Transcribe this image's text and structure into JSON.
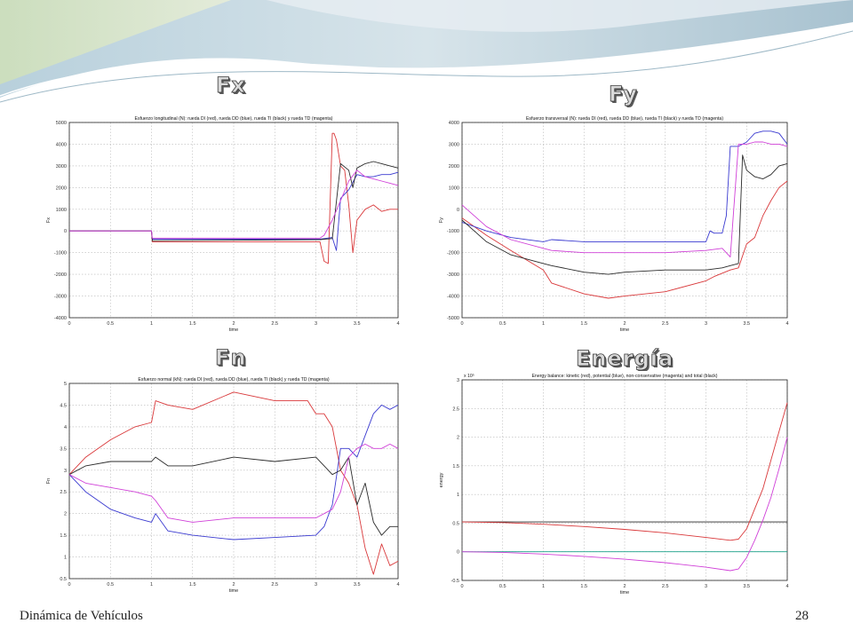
{
  "headings": {
    "fx": "Fx",
    "fy": "Fy",
    "fn": "Fn",
    "energy": "Energía"
  },
  "footer": {
    "title": "Dinámica de Vehículos",
    "page": "28"
  },
  "colors": {
    "red": "#d9383a",
    "blue": "#3a3ad0",
    "black": "#2a2a2a",
    "magenta": "#d040d8",
    "green": "#18a088"
  },
  "chart_data": [
    {
      "id": "fx",
      "type": "line",
      "title": "Esfuerzo longitudinal (N): rueda DI (red), rueda DD (blue), rueda TI (black) y rueda TD (magenta)",
      "xlabel": "time",
      "ylabel": "Fx",
      "xlim": [
        0,
        4
      ],
      "ylim": [
        -4000,
        5000
      ],
      "xticks": [
        0,
        0.5,
        1,
        1.5,
        2,
        2.5,
        3,
        3.5,
        4
      ],
      "xticklabels": [
        "0",
        "0.5",
        "1",
        "1.5",
        "2",
        "2.5",
        "3",
        "3.5",
        "4"
      ],
      "yticks": [
        -4000,
        -3000,
        -2000,
        -1000,
        0,
        1000,
        2000,
        3000,
        4000,
        5000
      ],
      "yticklabels": [
        "-4000",
        "-3000",
        "-2000",
        "-1000",
        "0",
        "1000",
        "2000",
        "3000",
        "4000",
        "5000"
      ],
      "grid": true,
      "series": [
        {
          "color": "red",
          "x": [
            0,
            1,
            1.01,
            3.05,
            3.1,
            3.15,
            3.2,
            3.22,
            3.25,
            3.3,
            3.35,
            3.4,
            3.45,
            3.5,
            3.6,
            3.7,
            3.8,
            3.9,
            4
          ],
          "y": [
            0,
            0,
            -500,
            -500,
            -1400,
            -1500,
            4500,
            4500,
            4200,
            3000,
            2800,
            1200,
            -1000,
            500,
            1000,
            1200,
            900,
            1000,
            1000
          ]
        },
        {
          "color": "blue",
          "x": [
            0,
            1,
            1.01,
            3.05,
            3.1,
            3.2,
            3.25,
            3.3,
            3.4,
            3.5,
            3.6,
            3.7,
            3.8,
            3.9,
            4
          ],
          "y": [
            0,
            0,
            -380,
            -380,
            -350,
            -300,
            -900,
            1500,
            1900,
            2600,
            2500,
            2500,
            2600,
            2600,
            2700
          ]
        },
        {
          "color": "black",
          "x": [
            0,
            1,
            1.01,
            3.05,
            3.1,
            3.2,
            3.3,
            3.4,
            3.45,
            3.5,
            3.6,
            3.7,
            3.8,
            3.9,
            4
          ],
          "y": [
            0,
            0,
            -450,
            -400,
            -380,
            -350,
            3100,
            2800,
            2000,
            2900,
            3100,
            3200,
            3100,
            3000,
            2900
          ]
        },
        {
          "color": "magenta",
          "x": [
            0,
            1,
            1.01,
            3.05,
            3.1,
            3.2,
            3.3,
            3.4,
            3.5,
            3.6,
            3.7,
            3.8,
            3.9,
            4
          ],
          "y": [
            0,
            0,
            -330,
            -330,
            -200,
            500,
            1400,
            2300,
            2800,
            2500,
            2400,
            2300,
            2200,
            2100
          ]
        }
      ]
    },
    {
      "id": "fy",
      "type": "line",
      "title": "Esfuerzo transversal (N): rueda DI (red), rueda DD (blue), rueda TI (black) y rueda TD (magenta)",
      "xlabel": "time",
      "ylabel": "Fy",
      "xlim": [
        0,
        4
      ],
      "ylim": [
        -5000,
        4000
      ],
      "xticks": [
        0,
        0.5,
        1,
        1.5,
        2,
        2.5,
        3,
        3.5,
        4
      ],
      "xticklabels": [
        "0",
        "0.5",
        "1",
        "1.5",
        "2",
        "2.5",
        "3",
        "3.5",
        "4"
      ],
      "yticks": [
        -5000,
        -4000,
        -3000,
        -2000,
        -1000,
        0,
        1000,
        2000,
        3000,
        4000
      ],
      "yticklabels": [
        "-5000",
        "-4000",
        "-3000",
        "-2000",
        "-1000",
        "0",
        "1000",
        "2000",
        "3000",
        "4000"
      ],
      "grid": true,
      "series": [
        {
          "color": "red",
          "x": [
            0,
            0.3,
            0.6,
            1,
            1.1,
            1.5,
            1.8,
            2,
            2.5,
            3,
            3.1,
            3.3,
            3.4,
            3.5,
            3.6,
            3.7,
            3.8,
            3.9,
            4
          ],
          "y": [
            -400,
            -1200,
            -1900,
            -2800,
            -3400,
            -3900,
            -4100,
            -4000,
            -3800,
            -3300,
            -3100,
            -2800,
            -2700,
            -1600,
            -1300,
            -300,
            400,
            1000,
            1300
          ]
        },
        {
          "color": "blue",
          "x": [
            0,
            0.3,
            0.6,
            1,
            1.1,
            1.5,
            2,
            2.5,
            3,
            3.05,
            3.1,
            3.2,
            3.25,
            3.3,
            3.4,
            3.5,
            3.6,
            3.7,
            3.8,
            3.9,
            4
          ],
          "y": [
            -600,
            -1000,
            -1300,
            -1500,
            -1400,
            -1500,
            -1500,
            -1500,
            -1500,
            -1000,
            -1100,
            -1100,
            -300,
            2900,
            2900,
            3100,
            3500,
            3600,
            3600,
            3500,
            3000
          ]
        },
        {
          "color": "black",
          "x": [
            0,
            0.3,
            0.6,
            1,
            1.1,
            1.5,
            1.8,
            2,
            2.5,
            3,
            3.2,
            3.3,
            3.4,
            3.45,
            3.5,
            3.6,
            3.7,
            3.8,
            3.9,
            4
          ],
          "y": [
            -500,
            -1500,
            -2100,
            -2500,
            -2600,
            -2900,
            -3000,
            -2900,
            -2800,
            -2800,
            -2700,
            -2600,
            -2500,
            2500,
            1800,
            1500,
            1400,
            1600,
            2000,
            2100
          ]
        },
        {
          "color": "magenta",
          "x": [
            0,
            0.3,
            0.6,
            1,
            1.1,
            1.5,
            2,
            2.5,
            3,
            3.2,
            3.3,
            3.4,
            3.5,
            3.6,
            3.7,
            3.8,
            3.9,
            4
          ],
          "y": [
            200,
            -800,
            -1400,
            -1800,
            -1900,
            -2000,
            -2000,
            -2000,
            -1900,
            -1800,
            -2200,
            3000,
            3000,
            3100,
            3100,
            3000,
            3000,
            2900
          ]
        }
      ]
    },
    {
      "id": "fn",
      "type": "line",
      "title": "Esfuerzo normal (kN): rueda DI (red), rueda DD (blue), rueda TI (black) y rueda TD (magenta)",
      "xlabel": "time",
      "ylabel": "Fn",
      "xlim": [
        0,
        4
      ],
      "ylim": [
        0.5,
        5
      ],
      "xticks": [
        0,
        0.5,
        1,
        1.5,
        2,
        2.5,
        3,
        3.5,
        4
      ],
      "xticklabels": [
        "0",
        "0.5",
        "1",
        "1.5",
        "2",
        "2.5",
        "3",
        "3.5",
        "4"
      ],
      "yticks": [
        0.5,
        1,
        1.5,
        2,
        2.5,
        3,
        3.5,
        4,
        4.5,
        5
      ],
      "yticklabels": [
        "0.5",
        "1",
        "1.5",
        "2",
        "2.5",
        "3",
        "3.5",
        "4",
        "4.5",
        "5"
      ],
      "grid": true,
      "series": [
        {
          "color": "red",
          "x": [
            0,
            0.2,
            0.5,
            0.8,
            1,
            1.05,
            1.2,
            1.5,
            2,
            2.5,
            2.9,
            3.0,
            3.1,
            3.2,
            3.3,
            3.4,
            3.5,
            3.6,
            3.7,
            3.8,
            3.9,
            4
          ],
          "y": [
            2.9,
            3.3,
            3.7,
            4.0,
            4.1,
            4.6,
            4.5,
            4.4,
            4.8,
            4.6,
            4.6,
            4.3,
            4.3,
            4.0,
            3.0,
            2.7,
            2.2,
            1.2,
            0.6,
            1.3,
            0.8,
            0.9
          ]
        },
        {
          "color": "blue",
          "x": [
            0,
            0.2,
            0.5,
            0.8,
            1,
            1.05,
            1.2,
            1.5,
            2,
            2.5,
            3.0,
            3.1,
            3.2,
            3.3,
            3.4,
            3.5,
            3.6,
            3.7,
            3.8,
            3.9,
            4
          ],
          "y": [
            2.9,
            2.5,
            2.1,
            1.9,
            1.8,
            2.0,
            1.6,
            1.5,
            1.4,
            1.45,
            1.5,
            1.7,
            2.2,
            3.5,
            3.5,
            3.3,
            3.8,
            4.3,
            4.5,
            4.4,
            4.5
          ]
        },
        {
          "color": "black",
          "x": [
            0,
            0.2,
            0.5,
            0.8,
            1,
            1.05,
            1.2,
            1.5,
            2,
            2.5,
            3.0,
            3.2,
            3.3,
            3.4,
            3.5,
            3.6,
            3.7,
            3.8,
            3.9,
            4
          ],
          "y": [
            2.9,
            3.1,
            3.2,
            3.2,
            3.2,
            3.3,
            3.1,
            3.1,
            3.3,
            3.2,
            3.3,
            2.9,
            3.0,
            3.3,
            2.2,
            2.7,
            1.8,
            1.5,
            1.7,
            1.7
          ]
        },
        {
          "color": "magenta",
          "x": [
            0,
            0.2,
            0.5,
            0.8,
            1,
            1.05,
            1.2,
            1.5,
            2,
            2.5,
            3.0,
            3.2,
            3.3,
            3.4,
            3.5,
            3.6,
            3.7,
            3.8,
            3.9,
            4
          ],
          "y": [
            2.9,
            2.7,
            2.6,
            2.5,
            2.4,
            2.3,
            1.9,
            1.8,
            1.9,
            1.9,
            1.9,
            2.1,
            2.5,
            3.3,
            3.5,
            3.6,
            3.5,
            3.5,
            3.6,
            3.5
          ]
        }
      ]
    },
    {
      "id": "energy",
      "type": "line",
      "title": "Energy balance: kinetic (red), potential (blue), non-conservative (magenta) and total (black)",
      "xlabel": "time",
      "ylabel": "energy",
      "multiplier": "x 10⁵",
      "xlim": [
        0,
        4
      ],
      "ylim": [
        -0.5,
        3
      ],
      "xticks": [
        0,
        0.5,
        1,
        1.5,
        2,
        2.5,
        3,
        3.5,
        4
      ],
      "xticklabels": [
        "0",
        "0.5",
        "1",
        "1.5",
        "2",
        "2.5",
        "3",
        "3.5",
        "4"
      ],
      "yticks": [
        -0.5,
        0,
        0.5,
        1,
        1.5,
        2,
        2.5,
        3
      ],
      "yticklabels": [
        "-0.5",
        "0",
        "0.5",
        "1",
        "1.5",
        "2",
        "2.5",
        "3"
      ],
      "grid": true,
      "series": [
        {
          "color": "black",
          "x": [
            0,
            4
          ],
          "y": [
            0.52,
            0.52
          ]
        },
        {
          "color": "green",
          "x": [
            0,
            4
          ],
          "y": [
            0,
            0
          ]
        },
        {
          "color": "red",
          "x": [
            0,
            0.5,
            1,
            1.5,
            2,
            2.5,
            3,
            3.3,
            3.4,
            3.5,
            3.6,
            3.7,
            3.8,
            3.9,
            4
          ],
          "y": [
            0.52,
            0.51,
            0.48,
            0.44,
            0.39,
            0.33,
            0.25,
            0.2,
            0.22,
            0.4,
            0.75,
            1.1,
            1.6,
            2.1,
            2.6
          ]
        },
        {
          "color": "magenta",
          "x": [
            0,
            0.5,
            1,
            1.5,
            2,
            2.5,
            3,
            3.3,
            3.4,
            3.5,
            3.6,
            3.7,
            3.8,
            3.9,
            4
          ],
          "y": [
            0,
            -0.01,
            -0.04,
            -0.08,
            -0.13,
            -0.19,
            -0.27,
            -0.33,
            -0.3,
            -0.1,
            0.2,
            0.55,
            0.95,
            1.45,
            2.0
          ]
        }
      ]
    }
  ]
}
